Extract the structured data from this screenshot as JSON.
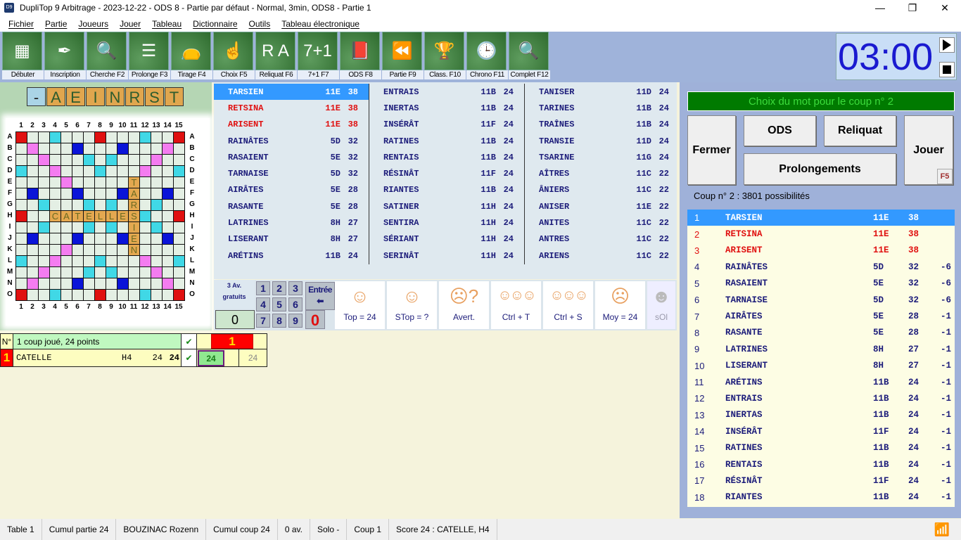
{
  "window": {
    "title": "DupliTop 9 Arbitrage - 2023-12-22 - ODS 8 - Partie par défaut - Normal, 3min, ODS8 - Partie 1",
    "icon": "D9"
  },
  "menu": [
    "Fichier",
    "Partie",
    "Joueurs",
    "Jouer",
    "Tableau",
    "Dictionnaire",
    "Outils",
    "Tableau électronique"
  ],
  "toolbar": [
    {
      "label": "Débuter",
      "icon": "board-icon"
    },
    {
      "label": "Inscription",
      "icon": "quill-icon"
    },
    {
      "label": "Cherche F2",
      "icon": "magnifier-icon"
    },
    {
      "label": "Prolonge F3",
      "icon": "list-icon"
    },
    {
      "label": "Tirage F4",
      "icon": "bag-icon"
    },
    {
      "label": "Choix F5",
      "icon": "choice-icon"
    },
    {
      "label": "Reliquat F6",
      "icon": "tiles-icon"
    },
    {
      "label": "7+1 F7",
      "icon": "seven-plus-one-icon"
    },
    {
      "label": "ODS F8",
      "icon": "book-icon"
    },
    {
      "label": "Partie F9",
      "icon": "rewind-icon"
    },
    {
      "label": "Class. F10",
      "icon": "trophy-icon"
    },
    {
      "label": "Chrono F11",
      "icon": "clock-icon"
    },
    {
      "label": "Complet F12",
      "icon": "magnifier-icon"
    }
  ],
  "timer": {
    "value": "03:00"
  },
  "rack": {
    "blank": "-",
    "letters": [
      "A",
      "E",
      "I",
      "N",
      "R",
      "S",
      "T"
    ]
  },
  "board": {
    "cols": [
      "1",
      "2",
      "3",
      "4",
      "5",
      "6",
      "7",
      "8",
      "9",
      "10",
      "11",
      "12",
      "13",
      "14",
      "15"
    ],
    "rows": [
      "A",
      "B",
      "C",
      "D",
      "E",
      "F",
      "G",
      "H",
      "I",
      "J",
      "K",
      "L",
      "M",
      "N",
      "O"
    ],
    "colors": {
      "tw": "#e01010",
      "tl": "#0a14d8",
      "dw": "#f47cf0",
      "dl": "#40d8e6",
      "tile": "#e4a850"
    },
    "tw": [
      "A1",
      "A8",
      "A15",
      "H1",
      "H15",
      "O1",
      "O8",
      "O15"
    ],
    "tl": [
      "B6",
      "B10",
      "F2",
      "F6",
      "F10",
      "F14",
      "J2",
      "J6",
      "J10",
      "J14",
      "N6",
      "N10"
    ],
    "dw": [
      "B2",
      "C3",
      "D4",
      "E5",
      "B14",
      "C13",
      "D12",
      "E11",
      "K5",
      "L4",
      "M3",
      "N2",
      "K11",
      "L12",
      "M13",
      "N14"
    ],
    "dl": [
      "A4",
      "A12",
      "C7",
      "C9",
      "D1",
      "D8",
      "D15",
      "G3",
      "G7",
      "G9",
      "G13",
      "H4",
      "H12",
      "I3",
      "I7",
      "I9",
      "I13",
      "L1",
      "L8",
      "L15",
      "M7",
      "M9",
      "O4",
      "O12"
    ],
    "tiles": [
      {
        "word": "CATELLES",
        "start": "H4",
        "dir": "h"
      },
      {
        "word": "TARSIEN",
        "start": "E11",
        "dir": "v"
      }
    ]
  },
  "words": [
    [
      {
        "w": "TARSIEN",
        "p": "11E",
        "s": "38",
        "state": "selected"
      },
      {
        "w": "RETSINA",
        "p": "11E",
        "s": "38",
        "state": "top"
      },
      {
        "w": "ARISENT",
        "p": "11E",
        "s": "38",
        "state": "top"
      },
      {
        "w": "RAINÂTES",
        "p": "5D",
        "s": "32"
      },
      {
        "w": "RASAIENT",
        "p": "5E",
        "s": "32"
      },
      {
        "w": "TARNAISE",
        "p": "5D",
        "s": "32"
      },
      {
        "w": "AIRÂTES",
        "p": "5E",
        "s": "28"
      },
      {
        "w": "RASANTE",
        "p": "5E",
        "s": "28"
      },
      {
        "w": "LATRINES",
        "p": "8H",
        "s": "27"
      },
      {
        "w": "LISERANT",
        "p": "8H",
        "s": "27"
      },
      {
        "w": "ARÉTINS",
        "p": "11B",
        "s": "24"
      }
    ],
    [
      {
        "w": "ENTRAIS",
        "p": "11B",
        "s": "24"
      },
      {
        "w": "INERTAS",
        "p": "11B",
        "s": "24"
      },
      {
        "w": "INSÉRÂT",
        "p": "11F",
        "s": "24"
      },
      {
        "w": "RATINES",
        "p": "11B",
        "s": "24"
      },
      {
        "w": "RENTAIS",
        "p": "11B",
        "s": "24"
      },
      {
        "w": "RÉSINÂT",
        "p": "11F",
        "s": "24"
      },
      {
        "w": "RIANTES",
        "p": "11B",
        "s": "24"
      },
      {
        "w": "SATINER",
        "p": "11H",
        "s": "24"
      },
      {
        "w": "SENTIRA",
        "p": "11H",
        "s": "24"
      },
      {
        "w": "SÉRIANT",
        "p": "11H",
        "s": "24"
      },
      {
        "w": "SERINÂT",
        "p": "11H",
        "s": "24"
      }
    ],
    [
      {
        "w": "TANISER",
        "p": "11D",
        "s": "24"
      },
      {
        "w": "TARINES",
        "p": "11B",
        "s": "24"
      },
      {
        "w": "TRAÎNES",
        "p": "11B",
        "s": "24"
      },
      {
        "w": "TRANSIE",
        "p": "11D",
        "s": "24"
      },
      {
        "w": "TSARINE",
        "p": "11G",
        "s": "24"
      },
      {
        "w": "AÎTRES",
        "p": "11C",
        "s": "22"
      },
      {
        "w": "ÂNIERS",
        "p": "11C",
        "s": "22"
      },
      {
        "w": "ANISER",
        "p": "11E",
        "s": "22"
      },
      {
        "w": "ANITES",
        "p": "11C",
        "s": "22"
      },
      {
        "w": "ANTRES",
        "p": "11C",
        "s": "22"
      },
      {
        "w": "ARIENS",
        "p": "11C",
        "s": "22"
      }
    ]
  ],
  "tools": {
    "av_line1": "3 Av.",
    "av_line2": "gratuits",
    "av_value": "0",
    "keys": [
      "1",
      "2",
      "3",
      "4",
      "5",
      "6",
      "7",
      "8",
      "9"
    ],
    "enter": "Entrée",
    "zero": "0",
    "faces": [
      {
        "label": "Top = 24",
        "icon": "face-icon"
      },
      {
        "label": "STop = ?",
        "icon": "face-icon"
      },
      {
        "label": "Avert.",
        "icon": "puzzled-face-icon"
      },
      {
        "label": "Ctrl + T",
        "icon": "three-faces-icon"
      },
      {
        "label": "Ctrl + S",
        "icon": "three-faces-icon"
      },
      {
        "label": "Moy = 24",
        "icon": "sad-face-icon"
      },
      {
        "label": "sOl",
        "icon": "laughing-face-icon"
      }
    ]
  },
  "score": {
    "no_header": "N°",
    "summary": "1 coup joué, 24 points",
    "round": "1",
    "row": {
      "rank": "1",
      "word": "CATELLE",
      "pos": "H4",
      "pts": "24",
      "total": "24",
      "cell": "24",
      "cum": "24"
    }
  },
  "right": {
    "banner": "Choix du mot pour le coup n° 2",
    "fermer": "Fermer",
    "ods": "ODS",
    "reliquat": "Reliquat",
    "prolongements": "Prolongements",
    "jouer": "Jouer",
    "jouer_key": "F5",
    "possibilities": "Coup n° 2 : 3801 possibilités",
    "list": [
      {
        "n": "1",
        "w": "TARSIEN",
        "p": "11E",
        "s": "38",
        "d": "",
        "state": "selected"
      },
      {
        "n": "2",
        "w": "RETSINA",
        "p": "11E",
        "s": "38",
        "d": "",
        "state": "top"
      },
      {
        "n": "3",
        "w": "ARISENT",
        "p": "11E",
        "s": "38",
        "d": "",
        "state": "top"
      },
      {
        "n": "4",
        "w": "RAINÂTES",
        "p": "5D",
        "s": "32",
        "d": "-6"
      },
      {
        "n": "5",
        "w": "RASAIENT",
        "p": "5E",
        "s": "32",
        "d": "-6"
      },
      {
        "n": "6",
        "w": "TARNAISE",
        "p": "5D",
        "s": "32",
        "d": "-6"
      },
      {
        "n": "7",
        "w": "AIRÂTES",
        "p": "5E",
        "s": "28",
        "d": "-1"
      },
      {
        "n": "8",
        "w": "RASANTE",
        "p": "5E",
        "s": "28",
        "d": "-1"
      },
      {
        "n": "9",
        "w": "LATRINES",
        "p": "8H",
        "s": "27",
        "d": "-1"
      },
      {
        "n": "10",
        "w": "LISERANT",
        "p": "8H",
        "s": "27",
        "d": "-1"
      },
      {
        "n": "11",
        "w": "ARÉTINS",
        "p": "11B",
        "s": "24",
        "d": "-1"
      },
      {
        "n": "12",
        "w": "ENTRAIS",
        "p": "11B",
        "s": "24",
        "d": "-1"
      },
      {
        "n": "13",
        "w": "INERTAS",
        "p": "11B",
        "s": "24",
        "d": "-1"
      },
      {
        "n": "14",
        "w": "INSÉRÂT",
        "p": "11F",
        "s": "24",
        "d": "-1"
      },
      {
        "n": "15",
        "w": "RATINES",
        "p": "11B",
        "s": "24",
        "d": "-1"
      },
      {
        "n": "16",
        "w": "RENTAIS",
        "p": "11B",
        "s": "24",
        "d": "-1"
      },
      {
        "n": "17",
        "w": "RÉSINÂT",
        "p": "11F",
        "s": "24",
        "d": "-1"
      },
      {
        "n": "18",
        "w": "RIANTES",
        "p": "11B",
        "s": "24",
        "d": "-1"
      }
    ]
  },
  "status": [
    "Table 1",
    "Cumul partie 24",
    "BOUZINAC Rozenn",
    "Cumul coup 24",
    "0 av.",
    "Solo -",
    "Coup 1",
    "Score 24 : CATELLE, H4"
  ]
}
